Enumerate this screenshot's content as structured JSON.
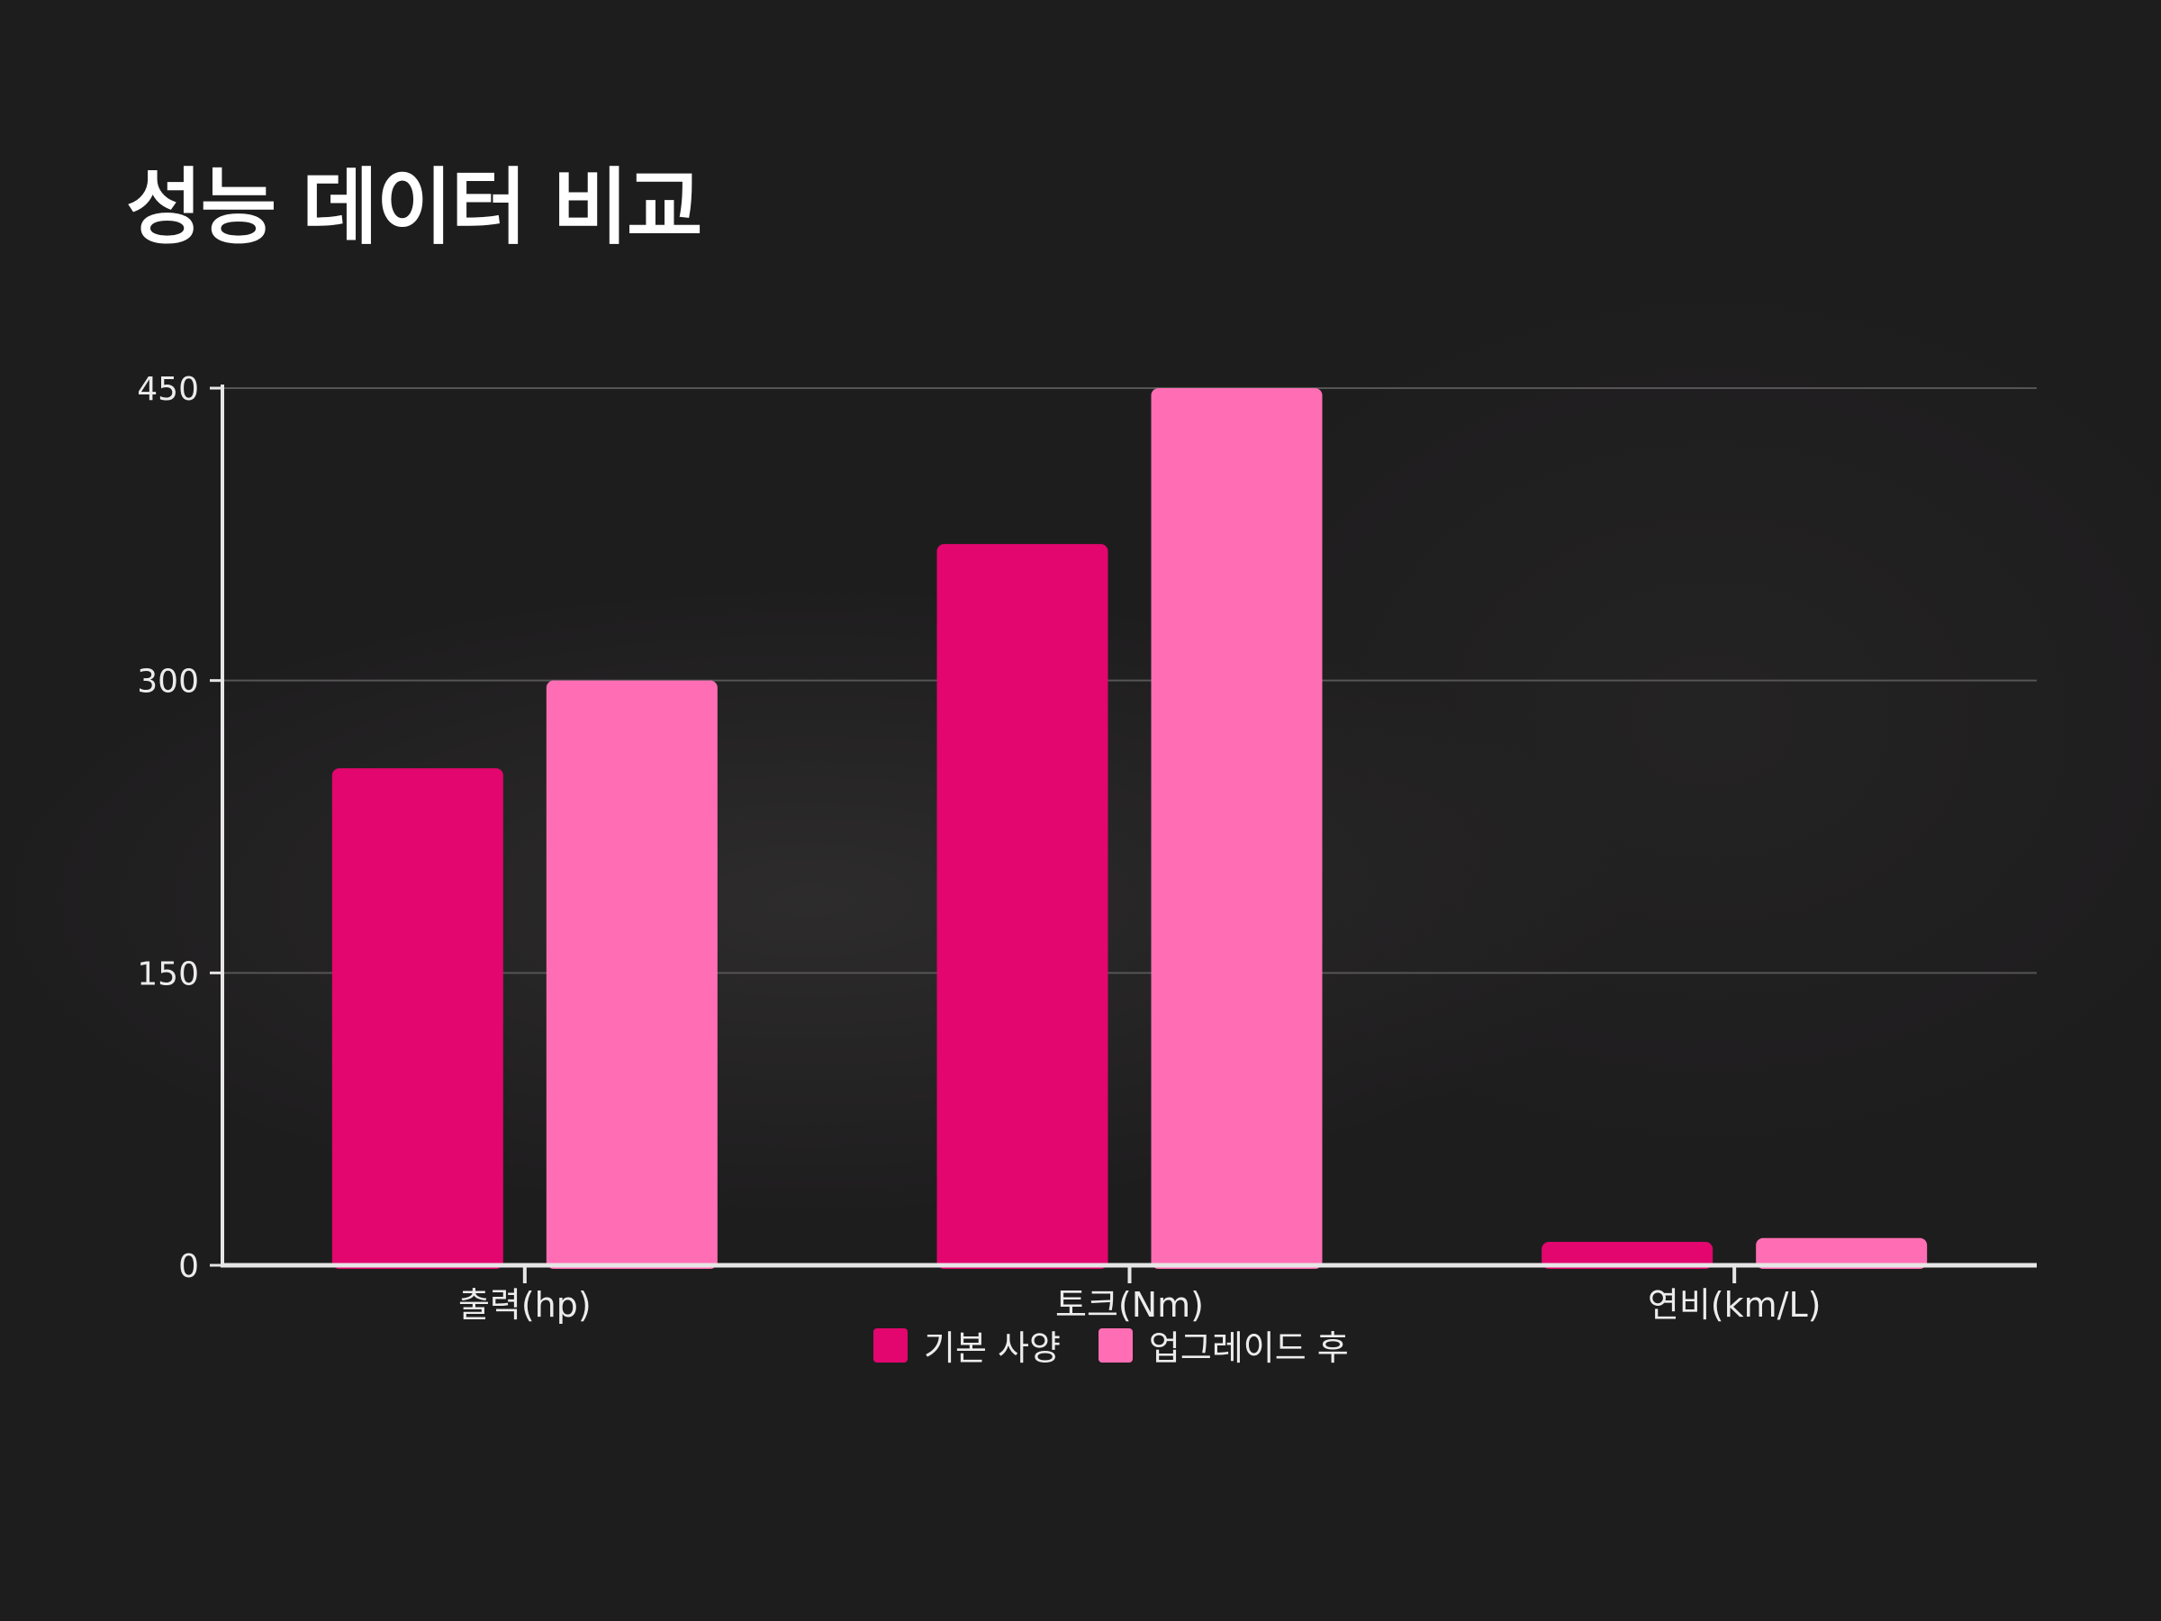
{
  "title": "성능 데이터 비교",
  "colors": {
    "background": "#1e1d1e",
    "base": "#e2066e",
    "upgraded": "#ff6eb4",
    "grid": "#555555",
    "axis": "#e6e6e6",
    "text": "#ececec"
  },
  "chart_data": {
    "type": "bar",
    "title": "",
    "xlabel": "",
    "ylabel": "",
    "categories": [
      "출력(hp)",
      "토크(Nm)",
      "연비(km/L)"
    ],
    "series": [
      {
        "name": "기본 사양",
        "values": [
          255,
          370,
          12
        ]
      },
      {
        "name": "업그레이드 후",
        "values": [
          300,
          450,
          14
        ]
      }
    ],
    "ylim": [
      0,
      450
    ],
    "yticks": [
      0,
      150,
      300,
      450
    ],
    "grid": true,
    "legend_position": "bottom-center"
  }
}
